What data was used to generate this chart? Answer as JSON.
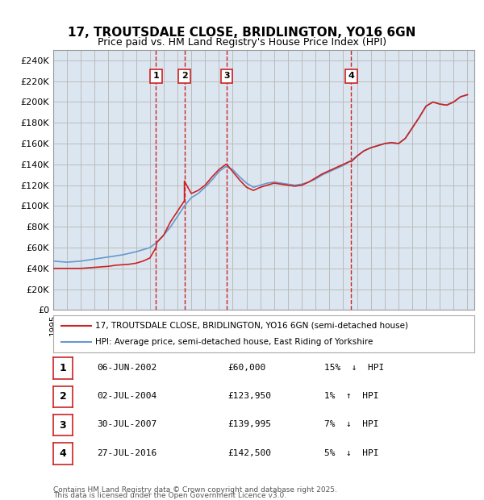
{
  "title": "17, TROUTSDALE CLOSE, BRIDLINGTON, YO16 6GN",
  "subtitle": "Price paid vs. HM Land Registry's House Price Index (HPI)",
  "background_color": "#dce6f0",
  "plot_bg_color": "#dce6f0",
  "ylabel": "",
  "ylim": [
    0,
    250000
  ],
  "yticks": [
    0,
    20000,
    40000,
    60000,
    80000,
    100000,
    120000,
    140000,
    160000,
    180000,
    200000,
    220000,
    240000
  ],
  "ytick_labels": [
    "£0",
    "£20K",
    "£40K",
    "£60K",
    "£80K",
    "£100K",
    "£120K",
    "£140K",
    "£160K",
    "£180K",
    "£200K",
    "£220K",
    "£240K"
  ],
  "xlim_start": 1995.0,
  "xlim_end": 2025.5,
  "hpi_color": "#6699cc",
  "price_color": "#cc2222",
  "transaction_color": "#cc2222",
  "grid_color": "#bbbbbb",
  "transactions": [
    {
      "id": 1,
      "date": "06-JUN-2002",
      "price": 60000,
      "pct": "15%",
      "dir": "↓",
      "year": 2002.44
    },
    {
      "id": 2,
      "date": "02-JUL-2004",
      "price": 123950,
      "pct": "1%",
      "dir": "↑",
      "year": 2004.5
    },
    {
      "id": 3,
      "date": "30-JUL-2007",
      "price": 139995,
      "pct": "7%",
      "dir": "↓",
      "year": 2007.58
    },
    {
      "id": 4,
      "date": "27-JUL-2016",
      "price": 142500,
      "pct": "5%",
      "dir": "↓",
      "year": 2016.58
    }
  ],
  "legend_line1": "17, TROUTSDALE CLOSE, BRIDLINGTON, YO16 6GN (semi-detached house)",
  "legend_line2": "HPI: Average price, semi-detached house, East Riding of Yorkshire",
  "footer1": "Contains HM Land Registry data © Crown copyright and database right 2025.",
  "footer2": "This data is licensed under the Open Government Licence v3.0.",
  "hpi_data_x": [
    1995,
    1995.5,
    1996,
    1996.5,
    1997,
    1997.5,
    1998,
    1998.5,
    1999,
    1999.5,
    2000,
    2000.5,
    2001,
    2001.5,
    2002,
    2002.5,
    2003,
    2003.5,
    2004,
    2004.5,
    2005,
    2005.5,
    2006,
    2006.5,
    2007,
    2007.5,
    2008,
    2008.5,
    2009,
    2009.5,
    2010,
    2010.5,
    2011,
    2011.5,
    2012,
    2012.5,
    2013,
    2013.5,
    2014,
    2014.5,
    2015,
    2015.5,
    2016,
    2016.5,
    2017,
    2017.5,
    2018,
    2018.5,
    2019,
    2019.5,
    2020,
    2020.5,
    2021,
    2021.5,
    2022,
    2022.5,
    2023,
    2023.5,
    2024,
    2024.5,
    2025
  ],
  "hpi_data_y": [
    47000,
    46500,
    46000,
    46500,
    47000,
    48000,
    49000,
    50000,
    51000,
    52000,
    53000,
    54500,
    56000,
    58000,
    60000,
    65000,
    72000,
    80000,
    90000,
    100000,
    108000,
    112000,
    118000,
    125000,
    133000,
    138000,
    135000,
    128000,
    122000,
    118000,
    120000,
    122000,
    123000,
    122000,
    121000,
    120000,
    121000,
    123000,
    126000,
    130000,
    133000,
    136000,
    139000,
    143000,
    148000,
    153000,
    156000,
    158000,
    160000,
    161000,
    160000,
    165000,
    175000,
    185000,
    196000,
    200000,
    198000,
    197000,
    200000,
    205000,
    207000
  ],
  "price_data_x": [
    1995,
    1995.5,
    1996,
    1996.5,
    1997,
    1997.5,
    1998,
    1998.5,
    1999,
    1999.5,
    2000,
    2000.5,
    2001,
    2001.5,
    2002,
    2002.44,
    2002.5,
    2003,
    2003.5,
    2004,
    2004.5,
    2004.5,
    2005,
    2005.5,
    2006,
    2006.5,
    2007,
    2007.5,
    2007.58,
    2008,
    2008.5,
    2009,
    2009.5,
    2010,
    2010.5,
    2011,
    2011.5,
    2012,
    2012.5,
    2013,
    2013.5,
    2014,
    2014.5,
    2015,
    2015.5,
    2016,
    2016.5,
    2016.58,
    2017,
    2017.5,
    2018,
    2018.5,
    2019,
    2019.5,
    2020,
    2020.5,
    2021,
    2021.5,
    2022,
    2022.5,
    2023,
    2023.5,
    2024,
    2024.5,
    2025
  ],
  "price_data_y": [
    40000,
    40000,
    40000,
    40000,
    40000,
    40500,
    41000,
    41500,
    42000,
    43000,
    43500,
    44000,
    45000,
    47000,
    50000,
    60000,
    65000,
    72000,
    85000,
    95000,
    105000,
    123950,
    112000,
    115000,
    120000,
    128000,
    135000,
    140000,
    139995,
    133000,
    125000,
    118000,
    115000,
    118000,
    120000,
    122000,
    121000,
    120000,
    119000,
    120000,
    123000,
    127000,
    131000,
    134000,
    137000,
    140000,
    143000,
    142500,
    148000,
    153000,
    156000,
    158000,
    160000,
    161000,
    160000,
    165000,
    175000,
    185000,
    196000,
    200000,
    198000,
    197000,
    200000,
    205000,
    207000
  ]
}
